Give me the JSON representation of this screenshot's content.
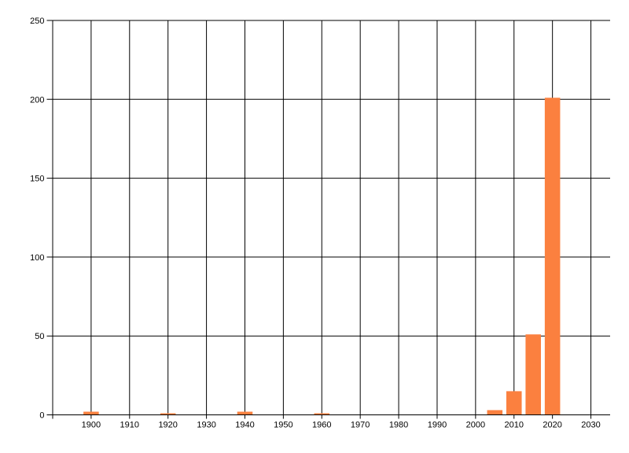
{
  "window": {
    "background_color": "#ffffff"
  },
  "chart_data": {
    "type": "bar",
    "title": "",
    "xlabel": "",
    "ylabel": "",
    "x": [
      1900,
      1920,
      1940,
      1960,
      2005,
      2010,
      2015,
      2020
    ],
    "values": [
      2,
      1,
      2,
      1,
      3,
      15,
      51,
      201
    ],
    "bar_width_years": 4,
    "xlim": [
      1890,
      2035
    ],
    "ylim": [
      0,
      250
    ],
    "x_gridline_years": [
      1890,
      1900,
      1910,
      1920,
      1930,
      1940,
      1950,
      1960,
      1970,
      1980,
      1990,
      2000,
      2010,
      2020,
      2030
    ],
    "x_tick_labels": [
      "1900",
      "1910",
      "1920",
      "1930",
      "1940",
      "1950",
      "1960",
      "1970",
      "1980",
      "1990",
      "2000",
      "2010",
      "2020",
      "2030"
    ],
    "x_tick_label_years": [
      1900,
      1910,
      1920,
      1930,
      1940,
      1950,
      1960,
      1970,
      1980,
      1990,
      2000,
      2010,
      2020,
      2030
    ],
    "y_ticks": [
      0,
      50,
      100,
      150,
      200,
      250
    ],
    "y_tick_labels": [
      "0",
      "50",
      "100",
      "150",
      "200",
      "250"
    ],
    "grid": "on",
    "legend": "none",
    "borders": {
      "left": true,
      "bottom": true,
      "top": true,
      "right": false
    },
    "colors": {
      "bar_fill": "#fb803f",
      "grid_line": "#000000",
      "axis_line": "#000000",
      "tick_text": "#000000",
      "plot_background": "#ffffff"
    }
  }
}
